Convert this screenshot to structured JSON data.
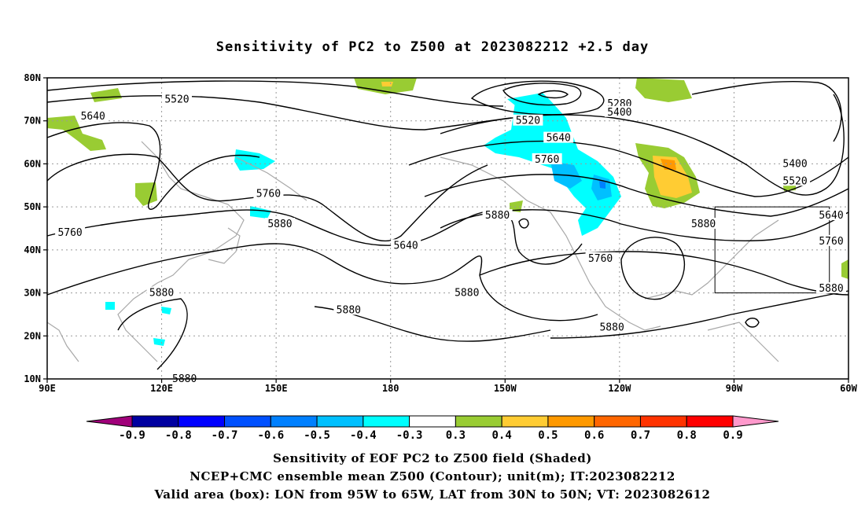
{
  "title": "Sensitivity of PC2 to Z500 at 2023082212 +2.5 day",
  "captions": {
    "line1": "Sensitivity of EOF PC2 to Z500 field (Shaded)",
    "line2": "NCEP+CMC ensemble mean Z500 (Contour); unit(m); IT:2023082212",
    "line3": "Valid area (box): LON from 95W to 65W, LAT from 30N to 50N; VT: 2023082612"
  },
  "map": {
    "lon_range": [
      90,
      300
    ],
    "lat_range": [
      10,
      80
    ],
    "x_ticks": [
      {
        "lon": 90,
        "label": "90E"
      },
      {
        "lon": 120,
        "label": "120E"
      },
      {
        "lon": 150,
        "label": "150E"
      },
      {
        "lon": 180,
        "label": "180"
      },
      {
        "lon": 210,
        "label": "150W"
      },
      {
        "lon": 240,
        "label": "120W"
      },
      {
        "lon": 270,
        "label": "90W"
      },
      {
        "lon": 300,
        "label": "60W"
      }
    ],
    "y_ticks": [
      {
        "lat": 10,
        "label": "10N"
      },
      {
        "lat": 20,
        "label": "20N"
      },
      {
        "lat": 30,
        "label": "30N"
      },
      {
        "lat": 40,
        "label": "40N"
      },
      {
        "lat": 50,
        "label": "50N"
      },
      {
        "lat": 60,
        "label": "60N"
      },
      {
        "lat": 70,
        "label": "70N"
      },
      {
        "lat": 80,
        "label": "80N"
      }
    ],
    "valid_box": {
      "lon_min": 265,
      "lon_max": 295,
      "lat_min": 30,
      "lat_max": 50
    },
    "contour_labels": [
      {
        "text": "5520",
        "lon": 124,
        "lat": 75
      },
      {
        "text": "5640",
        "lon": 102,
        "lat": 71
      },
      {
        "text": "5760",
        "lon": 148,
        "lat": 53
      },
      {
        "text": "5880",
        "lon": 151,
        "lat": 46
      },
      {
        "text": "5760",
        "lon": 96,
        "lat": 44
      },
      {
        "text": "5880",
        "lon": 120,
        "lat": 30
      },
      {
        "text": "5880",
        "lon": 169,
        "lat": 26
      },
      {
        "text": "5880",
        "lon": 126,
        "lat": 10
      },
      {
        "text": "5640",
        "lon": 184,
        "lat": 41
      },
      {
        "text": "5880",
        "lon": 200,
        "lat": 30
      },
      {
        "text": "5880",
        "lon": 208,
        "lat": 48
      },
      {
        "text": "5760",
        "lon": 235,
        "lat": 38
      },
      {
        "text": "5880",
        "lon": 238,
        "lat": 22
      },
      {
        "text": "5280",
        "lon": 240,
        "lat": 74
      },
      {
        "text": "5400",
        "lon": 240,
        "lat": 72
      },
      {
        "text": "5520",
        "lon": 216,
        "lat": 70
      },
      {
        "text": "5640",
        "lon": 224,
        "lat": 66
      },
      {
        "text": "5760",
        "lon": 221,
        "lat": 61
      },
      {
        "text": "5880",
        "lon": 262,
        "lat": 46
      },
      {
        "text": "5400",
        "lon": 286,
        "lat": 60
      },
      {
        "text": "5520",
        "lon": 286,
        "lat": 56
      },
      {
        "text": "5640",
        "lon": 303,
        "lat": 48
      },
      {
        "text": "5760",
        "lon": 301,
        "lat": 42
      },
      {
        "text": "5880",
        "lon": 305,
        "lat": 31
      }
    ]
  },
  "colorbar": {
    "colors": [
      "#a0007a",
      "#0000a0",
      "#0000ff",
      "#0050ff",
      "#0080ff",
      "#00c0ff",
      "#00ffff",
      "#ffffff",
      "#99cc33",
      "#ffcc33",
      "#ff9900",
      "#ff6600",
      "#ff3300",
      "#ff0000",
      "#ff99cc"
    ],
    "labels": [
      "-0.9",
      "-0.8",
      "-0.7",
      "-0.6",
      "-0.5",
      "-0.4",
      "-0.3",
      "0.3",
      "0.4",
      "0.5",
      "0.6",
      "0.7",
      "0.8",
      "0.9"
    ]
  }
}
